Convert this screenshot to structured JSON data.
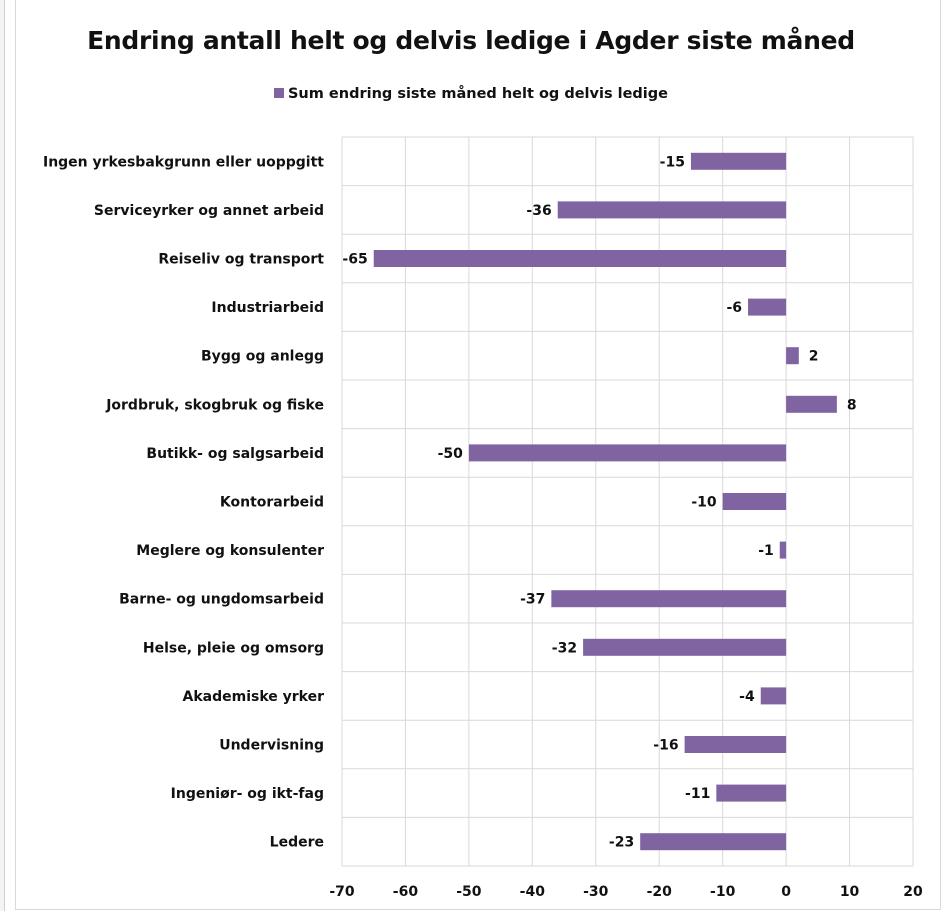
{
  "chart_data": {
    "type": "bar",
    "orientation": "horizontal",
    "title": "Endring antall helt og delvis ledige i Agder siste måned",
    "legend_position": "top",
    "grid": true,
    "xlim": [
      -70,
      20
    ],
    "x_ticks": [
      -70,
      -60,
      -50,
      -40,
      -30,
      -20,
      -10,
      0,
      10,
      20
    ],
    "categories": [
      "Ingen yrkesbakgrunn eller uoppgitt",
      "Serviceyrker og annet arbeid",
      "Reiseliv og transport",
      "Industriarbeid",
      "Bygg og anlegg",
      "Jordbruk, skogbruk og fiske",
      "Butikk- og salgsarbeid",
      "Kontorarbeid",
      "Meglere og konsulenter",
      "Barne- og ungdomsarbeid",
      "Helse, pleie og omsorg",
      "Akademiske yrker",
      "Undervisning",
      "Ingeniør- og ikt-fag",
      "Ledere"
    ],
    "series": [
      {
        "name": "Sum endring siste måned helt og delvis ledige",
        "color": "#8064a2",
        "values": [
          -15,
          -36,
          -65,
          -6,
          2,
          8,
          -50,
          -10,
          -1,
          -37,
          -32,
          -4,
          -16,
          -11,
          -23
        ]
      }
    ]
  }
}
